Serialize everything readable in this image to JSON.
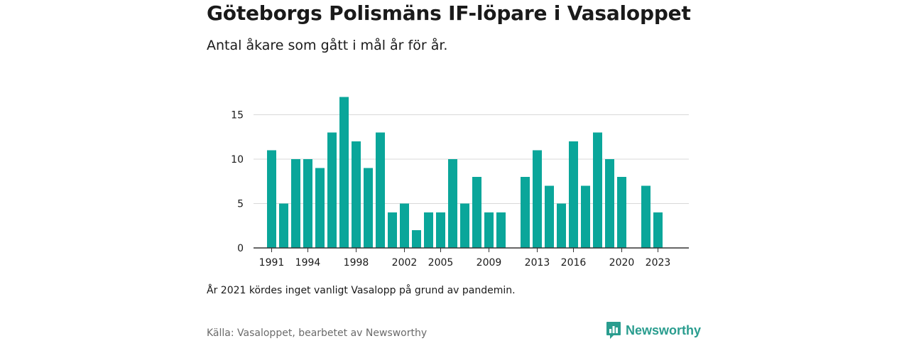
{
  "title": "Göteborgs Polismäns IF-löpare i Vasaloppet",
  "subtitle": "Antal åkare som gått i mål år för år.",
  "note": "År 2021 kördes inget vanligt Vasalopp på grund av pandemin.",
  "source": "Källa: Vasaloppet, bearbetet av Newsworthy",
  "brand": {
    "name": "Newsworthy",
    "icon": "newsworthy-logo-icon",
    "color": "#2a9d8f"
  },
  "chart_data": {
    "type": "bar",
    "categories": [
      1991,
      1992,
      1993,
      1994,
      1995,
      1996,
      1997,
      1998,
      1999,
      2000,
      2001,
      2002,
      2003,
      2004,
      2005,
      2006,
      2007,
      2008,
      2009,
      2010,
      2011,
      2012,
      2013,
      2014,
      2015,
      2016,
      2017,
      2018,
      2019,
      2020,
      2021,
      2022,
      2023
    ],
    "values": [
      11,
      5,
      10,
      10,
      9,
      13,
      17,
      12,
      9,
      13,
      4,
      5,
      2,
      4,
      4,
      10,
      5,
      8,
      4,
      4,
      null,
      8,
      11,
      7,
      5,
      12,
      7,
      13,
      10,
      8,
      null,
      7,
      4
    ],
    "ylim": [
      0,
      18
    ],
    "yticks": [
      0,
      5,
      10,
      15
    ],
    "xticks": [
      1991,
      1994,
      1998,
      2002,
      2005,
      2009,
      2013,
      2016,
      2020,
      2023
    ],
    "grid": true,
    "bar_color": "#0aa69a"
  }
}
